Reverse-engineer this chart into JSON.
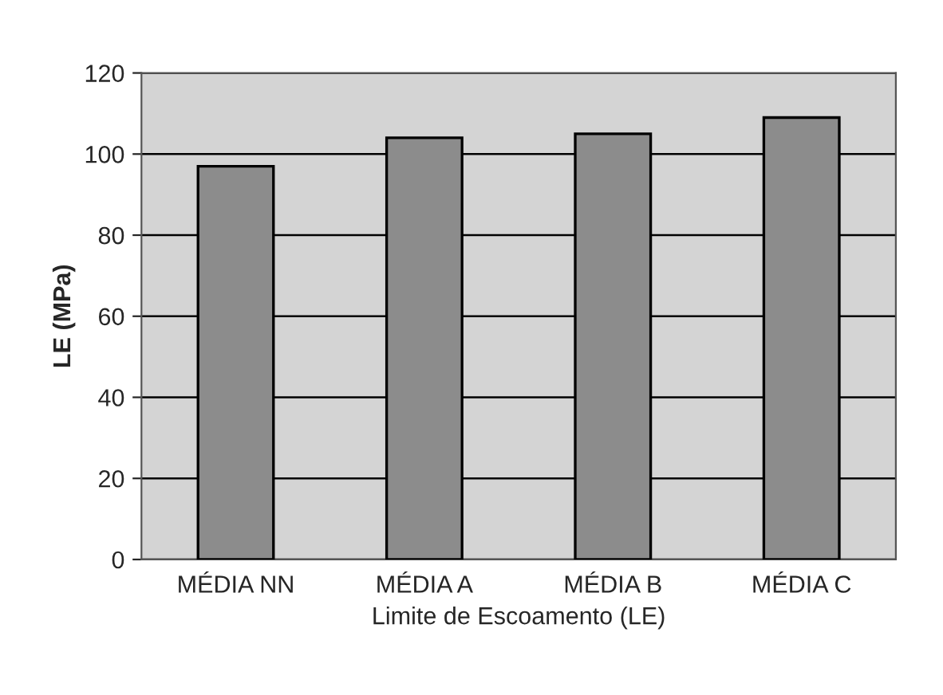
{
  "chart_data": {
    "type": "bar",
    "xlabel": "Limite de Escoamento (LE)",
    "ylabel": "LE (MPa)",
    "categories": [
      "MÉDIA NN",
      "MÉDIA A",
      "MÉDIA B",
      "MÉDIA C"
    ],
    "values": [
      97,
      104,
      105,
      109
    ],
    "color": "#8c8c8c",
    "ylim": [
      0,
      120
    ],
    "yticks": [
      0,
      20,
      40,
      60,
      80,
      100,
      120
    ],
    "grid": "y"
  }
}
